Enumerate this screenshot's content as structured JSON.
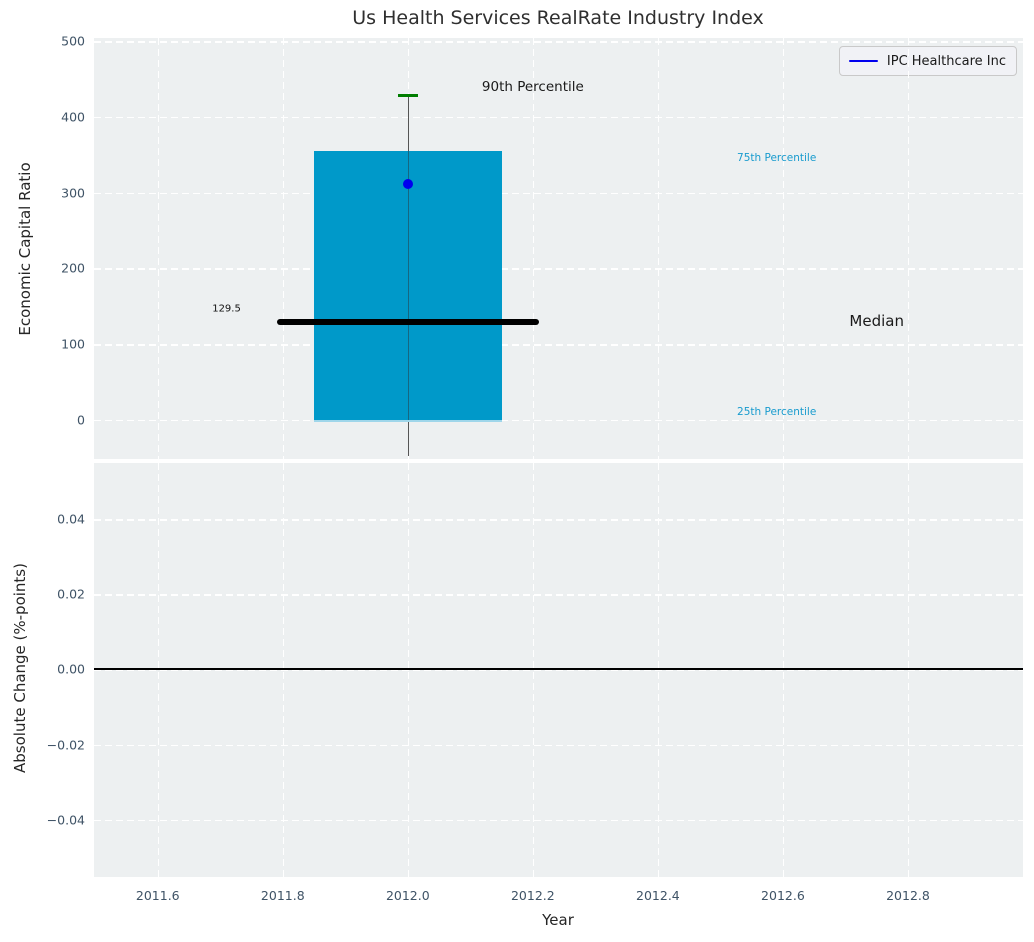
{
  "title": "Us Health Services RealRate Industry Index",
  "legend": {
    "label": "IPC Healthcare Inc",
    "swatch_color": "#0000ee"
  },
  "colors": {
    "plot_bg": "#edf0f1",
    "grid": "#ffffff",
    "box_fill": "#0099c9",
    "box_bottom_edge": "#9fd6ea",
    "median_line": "#000000",
    "whisker": "#555555",
    "p90_cap": "#007d00",
    "company_dot": "#0000ee",
    "percentile_label": "#189bce",
    "tick_label": "#3f5366",
    "zero_line": "#000000"
  },
  "chart_data": [
    {
      "type": "boxplot",
      "title": "Us Health Services RealRate Industry Index",
      "ylabel": "Economic Capital Ratio",
      "xlim": [
        2011.498,
        2012.984
      ],
      "ylim": [
        -51.5,
        504
      ],
      "grid": true,
      "yticks": [
        0,
        100,
        200,
        300,
        400,
        500
      ],
      "ytick_labels": [
        "0",
        "100",
        "200",
        "300",
        "400",
        "500"
      ],
      "xticks": [
        2011.6,
        2011.8,
        2012.0,
        2012.2,
        2012.4,
        2012.6,
        2012.8
      ],
      "legend_position": "upper right",
      "box": {
        "x_center": 2012.0,
        "x_left": 2011.85,
        "x_right": 2012.15,
        "p25": 0,
        "median": 129.5,
        "p75": 355,
        "p90": 428,
        "whisker_low": -48,
        "median_x_left": 2011.79,
        "median_x_right": 2012.21,
        "cap_half_width": 0.016
      },
      "series": [
        {
          "name": "IPC Healthcare Inc",
          "type": "point",
          "x": 2012.0,
          "y": 312
        }
      ],
      "annotations": [
        {
          "text": "90th Percentile",
          "x": 2012.2,
          "y": 440,
          "color": "#1a1a1a",
          "size": 13.5
        },
        {
          "text": "75th Percentile",
          "x": 2012.59,
          "y": 346,
          "color": "#189bce",
          "size": 10.5
        },
        {
          "text": "Median",
          "x": 2012.75,
          "y": 130,
          "color": "#1a1a1a",
          "size": 15
        },
        {
          "text": "25th Percentile",
          "x": 2012.59,
          "y": 10,
          "color": "#189bce",
          "size": 10.5
        },
        {
          "text": "129.5",
          "x": 2011.71,
          "y": 146,
          "color": "#111111",
          "size": 10
        }
      ]
    },
    {
      "type": "line",
      "ylabel": "Absolute Change (%-points)",
      "xlabel": "Year",
      "xlim": [
        2011.498,
        2012.984
      ],
      "ylim": [
        -0.0552,
        0.0549
      ],
      "grid": true,
      "yticks": [
        0.04,
        0.02,
        0.0,
        -0.02,
        -0.04
      ],
      "ytick_labels": [
        "0.04",
        "0.02",
        "0.00",
        "−0.02",
        "−0.04"
      ],
      "xticks": [
        2011.6,
        2011.8,
        2012.0,
        2012.2,
        2012.4,
        2012.6,
        2012.8
      ],
      "xtick_labels": [
        "2011.6",
        "2011.8",
        "2012.0",
        "2012.2",
        "2012.4",
        "2012.6",
        "2012.8"
      ],
      "zero_line": 0.0,
      "series": []
    }
  ]
}
